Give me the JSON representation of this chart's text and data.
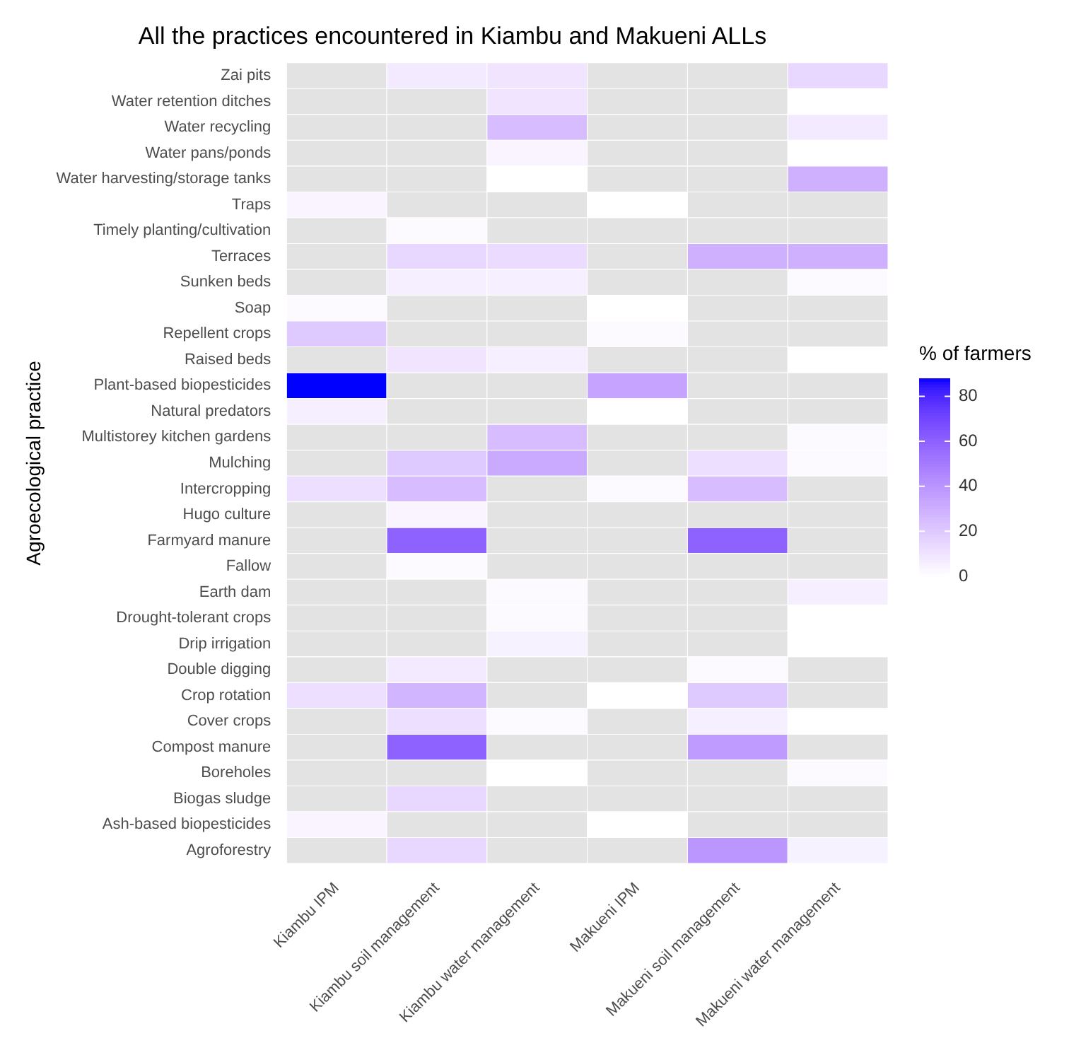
{
  "chart_data": {
    "type": "heatmap",
    "title": "All the practices encountered in Kiambu and Makueni ALLs",
    "ylabel": "Agroecological practice",
    "clabel": "% of farmers",
    "categories": [
      "Kiambu IPM",
      "Kiambu soil management",
      "Kiambu water management",
      "Makueni IPM",
      "Makueni soil management",
      "Makueni water management"
    ],
    "y_categories": [
      "Zai pits",
      "Water retention ditches",
      "Water recycling",
      "Water pans/ponds",
      "Water harvesting/storage tanks",
      "Traps",
      "Timely planting/cultivation",
      "Terraces",
      "Sunken beds",
      "Soap",
      "Repellent crops",
      "Raised beds",
      "Plant-based biopesticides",
      "Natural predators",
      "Multistorey kitchen gardens",
      "Mulching",
      "Intercropping",
      "Hugo culture",
      "Farmyard manure",
      "Fallow",
      "Earth dam",
      "Drought-tolerant crops",
      "Drip irrigation",
      "Double digging",
      "Crop rotation",
      "Cover crops",
      "Compost manure",
      "Boreholes",
      "Biogas sludge",
      "Ash-based biopesticides",
      "Agroforestry"
    ],
    "cells": [
      [
        null,
        8,
        10,
        null,
        null,
        15
      ],
      [
        null,
        null,
        10,
        null,
        null,
        0
      ],
      [
        null,
        null,
        25,
        null,
        null,
        8
      ],
      [
        null,
        null,
        4,
        null,
        null,
        0
      ],
      [
        null,
        null,
        0,
        null,
        null,
        30
      ],
      [
        4,
        null,
        null,
        0,
        null,
        null
      ],
      [
        null,
        2,
        null,
        null,
        null,
        null
      ],
      [
        null,
        15,
        13,
        null,
        30,
        30
      ],
      [
        null,
        6,
        6,
        null,
        null,
        2
      ],
      [
        2,
        null,
        null,
        0,
        null,
        null
      ],
      [
        20,
        null,
        null,
        2,
        null,
        null
      ],
      [
        null,
        10,
        6,
        null,
        null,
        0
      ],
      [
        88,
        null,
        null,
        35,
        null,
        null
      ],
      [
        6,
        null,
        null,
        0,
        null,
        null
      ],
      [
        null,
        null,
        25,
        null,
        null,
        2
      ],
      [
        null,
        20,
        32,
        null,
        12,
        2
      ],
      [
        12,
        25,
        null,
        2,
        25,
        null
      ],
      [
        null,
        4,
        null,
        null,
        null,
        null
      ],
      [
        null,
        60,
        null,
        null,
        60,
        null
      ],
      [
        null,
        2,
        null,
        null,
        null,
        null
      ],
      [
        null,
        null,
        2,
        null,
        null,
        6
      ],
      [
        null,
        null,
        2,
        null,
        null,
        0
      ],
      [
        null,
        null,
        5,
        null,
        null,
        0
      ],
      [
        null,
        8,
        null,
        null,
        2,
        null
      ],
      [
        12,
        28,
        null,
        0,
        20,
        null
      ],
      [
        null,
        12,
        2,
        null,
        6,
        0
      ],
      [
        null,
        60,
        null,
        null,
        38,
        null
      ],
      [
        null,
        null,
        0,
        null,
        null,
        2
      ],
      [
        null,
        15,
        null,
        null,
        null,
        null
      ],
      [
        4,
        null,
        null,
        0,
        null,
        null
      ],
      [
        null,
        15,
        null,
        null,
        40,
        5
      ]
    ],
    "clim": [
      0,
      88
    ],
    "cticks": [
      0,
      20,
      40,
      60,
      80
    ]
  }
}
